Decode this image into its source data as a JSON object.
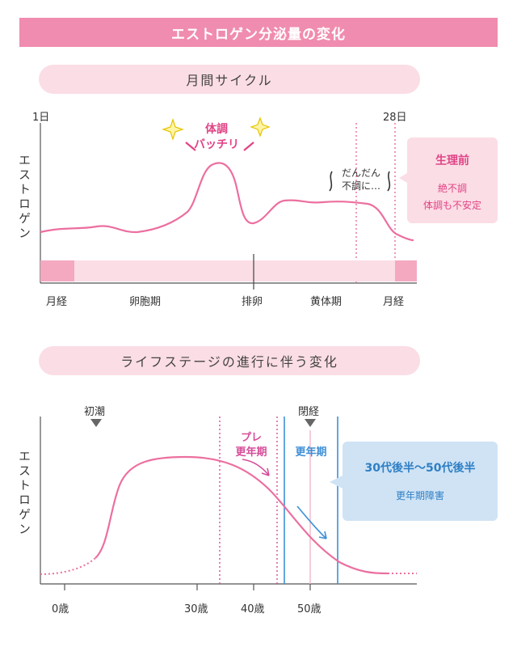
{
  "title": "エストロゲン分泌量の変化",
  "cycle": {
    "heading": "月間サイクル",
    "day_start": "1日",
    "day_end": "28日",
    "y_label": "エストロゲン",
    "peak_label_1": "体調",
    "peak_label_2": "バッチリ",
    "dip_label_1": "だんだん",
    "dip_label_2": "不調に…",
    "phases": [
      "月経",
      "卵胞期",
      "排卵",
      "黄体期",
      "月経"
    ],
    "box": {
      "title": "生理前",
      "line1": "絶不調",
      "line2": "体調も不安定"
    }
  },
  "life": {
    "heading": "ライフステージの進行に伴う変化",
    "y_label": "エストロゲン",
    "marker_menarche": "初潮",
    "marker_menopause": "閉経",
    "pre_label_1": "プレ",
    "pre_label_2": "更年期",
    "meno_label": "更年期",
    "ages": [
      "0歳",
      "30歳",
      "40歳",
      "50歳"
    ],
    "box": {
      "title": "30代後半〜50代後半",
      "subtitle": "更年期障害"
    }
  },
  "colors": {
    "title_bg": "#f08caf",
    "pill_bg": "#fbdde5",
    "curve": "#ec6f9f",
    "accent_pink": "#e04486",
    "blue": "#3d8fd6",
    "blue_box": "#cfe3f5"
  }
}
